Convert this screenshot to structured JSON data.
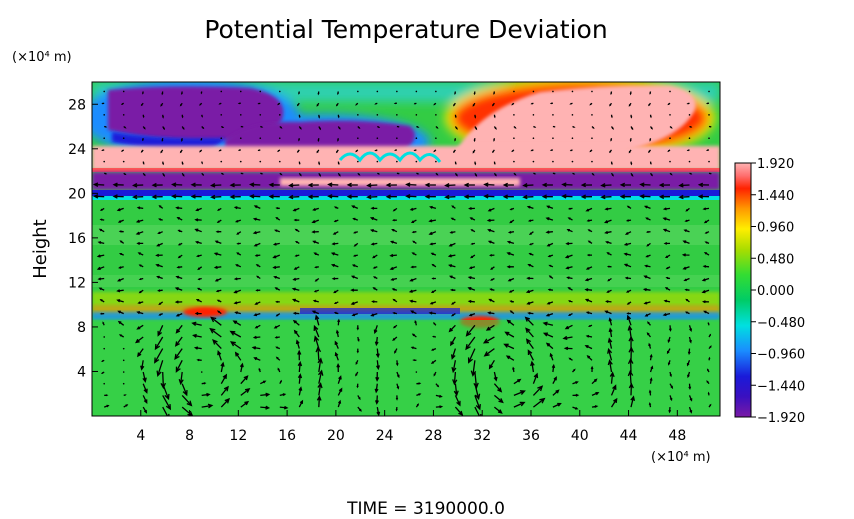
{
  "chart_data": {
    "type": "heatmap",
    "title": "Potential Temperature Deviation",
    "ylabel": "Height",
    "xlabel": "",
    "x_unit": "(×10⁴ m)",
    "y_unit": "(×10⁴ m)",
    "footer": "TIME = 3190000.0",
    "xlim": [
      0,
      51.5
    ],
    "ylim": [
      0,
      30
    ],
    "x_ticks": [
      4,
      8,
      12,
      16,
      20,
      24,
      28,
      32,
      36,
      40,
      44,
      48
    ],
    "x_tick_labels": [
      "4",
      "8",
      "12",
      "16",
      "20",
      "24",
      "28",
      "32",
      "36",
      "40",
      "44",
      "48"
    ],
    "y_ticks": [
      4,
      8,
      12,
      16,
      20,
      24,
      28
    ],
    "y_tick_labels": [
      "4",
      "8",
      "12",
      "16",
      "20",
      "24",
      "28"
    ],
    "colorbar": {
      "range": [
        -1.92,
        1.92
      ],
      "tick_values": [
        1.92,
        1.44,
        0.96,
        0.48,
        0.0,
        -0.48,
        -0.96,
        -1.44,
        -1.92
      ],
      "tick_labels": [
        "1.920",
        "1.440",
        "0.960",
        "0.480",
        "0.000",
        "−0.480",
        "−0.960",
        "−1.440",
        "−1.920"
      ],
      "colors": [
        "#7a1aa6",
        "#1a1ad9",
        "#1a8cff",
        "#00e0e0",
        "#00cc66",
        "#33dd33",
        "#aadd00",
        "#ffee00",
        "#ff9900",
        "#ff2200",
        "#ffb3b3"
      ]
    },
    "features": [
      {
        "sign": "negative",
        "x": [
          1.5,
          14.5
        ],
        "y": [
          24,
          29.8
        ]
      },
      {
        "sign": "negative",
        "x": [
          12,
          27
        ],
        "y": [
          22.5,
          27
        ]
      },
      {
        "sign": "positive",
        "x": [
          30,
          49.5
        ],
        "y": [
          23,
          30
        ]
      },
      {
        "sign": "positive",
        "x": [
          0,
          51.5
        ],
        "y": [
          20.8,
          24.5
        ]
      },
      {
        "sign": "negative",
        "x": [
          0,
          51.5
        ],
        "y": [
          19.7,
          21.3
        ]
      },
      {
        "sign": "mixed",
        "x": [
          0,
          51.5
        ],
        "y": [
          8.6,
          10.2
        ]
      }
    ],
    "vortices": [
      {
        "center": [
          10,
          4
        ],
        "radius": [
          7,
          4
        ]
      },
      {
        "center": [
          35,
          4
        ],
        "radius": [
          7,
          4
        ]
      }
    ]
  }
}
